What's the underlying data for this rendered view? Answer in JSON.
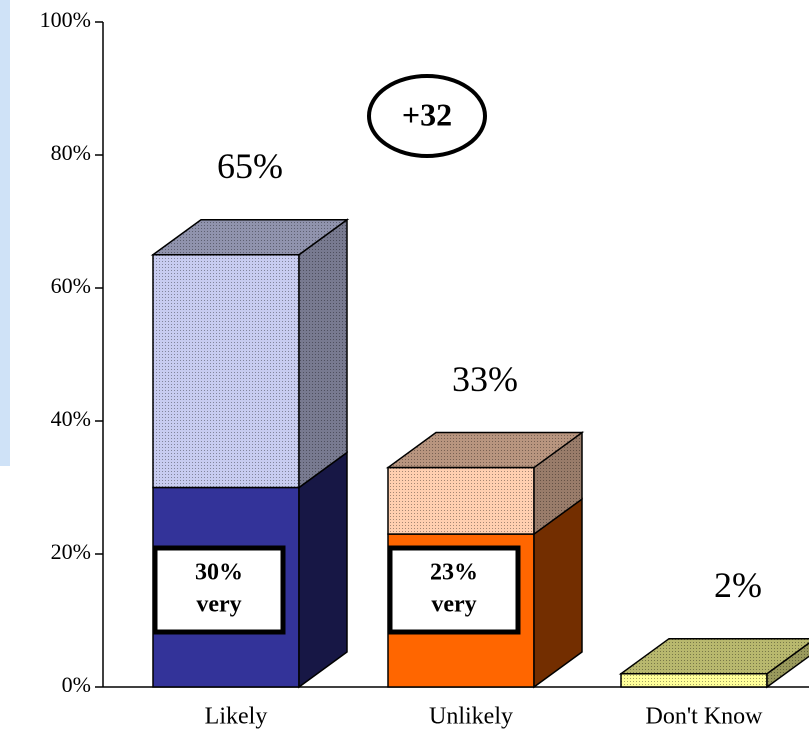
{
  "chart_data": {
    "type": "bar3d_stacked",
    "annotation": "+32",
    "categories": [
      "Likely",
      "Unlikely",
      "Don't Know"
    ],
    "series": [
      {
        "values": [
          30,
          23,
          null
        ],
        "value_labels": [
          "30%",
          "23%",
          null
        ],
        "label": "very",
        "colors": [
          "#333399",
          "#ff6600",
          null
        ]
      },
      {
        "values": [
          35,
          10,
          2
        ],
        "colors": [
          "#c8ccf0",
          "#ffcfb0",
          "#ffff99"
        ]
      }
    ],
    "totals": [
      65,
      33,
      2
    ],
    "total_labels": [
      "65%",
      "33%",
      "2%"
    ],
    "ylim": [
      0,
      100
    ],
    "yticks": [
      {
        "value": 0,
        "label": "0%"
      },
      {
        "value": 20,
        "label": "20%"
      },
      {
        "value": 40,
        "label": "40%"
      },
      {
        "value": 60,
        "label": "60%"
      },
      {
        "value": 80,
        "label": "80%"
      },
      {
        "value": 100,
        "label": "100%"
      }
    ]
  }
}
